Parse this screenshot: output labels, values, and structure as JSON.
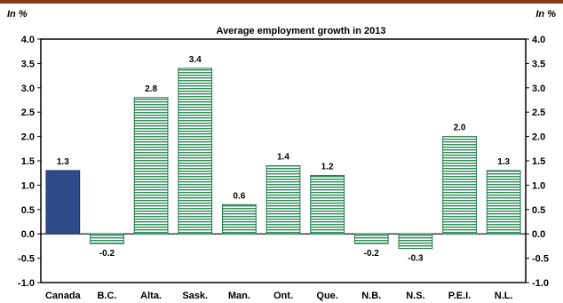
{
  "colors": {
    "top_rule": "#8a3a14",
    "canada_fill": "#2e4d88",
    "canada_stroke": "#1a2f5e",
    "province_stripe": "#2e8b57",
    "province_stroke": "#1f7a45"
  },
  "chart_data": {
    "type": "bar",
    "title": "Average employment growth in 2013",
    "y_unit_left": "In %",
    "y_unit_right": "In %",
    "categories": [
      "Canada",
      "B.C.",
      "Alta.",
      "Sask.",
      "Man.",
      "Ont.",
      "Que.",
      "N.B.",
      "N.S.",
      "P.E.I.",
      "N.L."
    ],
    "values": [
      1.3,
      -0.2,
      2.8,
      3.4,
      0.6,
      1.4,
      1.2,
      -0.2,
      -0.3,
      2.0,
      1.3
    ],
    "value_labels": [
      "1.3",
      "-0.2",
      "2.8",
      "3.4",
      "0.6",
      "1.4",
      "1.2",
      "-0.2",
      "-0.3",
      "2.0",
      "1.3"
    ],
    "ylim": [
      -1.0,
      4.0
    ],
    "yticks": [
      "4.0",
      "3.5",
      "3.0",
      "2.5",
      "2.0",
      "1.5",
      "1.0",
      "0.5",
      "0.0",
      "-0.5",
      "-1.0"
    ],
    "ytick_values": [
      4.0,
      3.5,
      3.0,
      2.5,
      2.0,
      1.5,
      1.0,
      0.5,
      0.0,
      -0.5,
      -1.0
    ],
    "grid": false,
    "legend": "none"
  }
}
